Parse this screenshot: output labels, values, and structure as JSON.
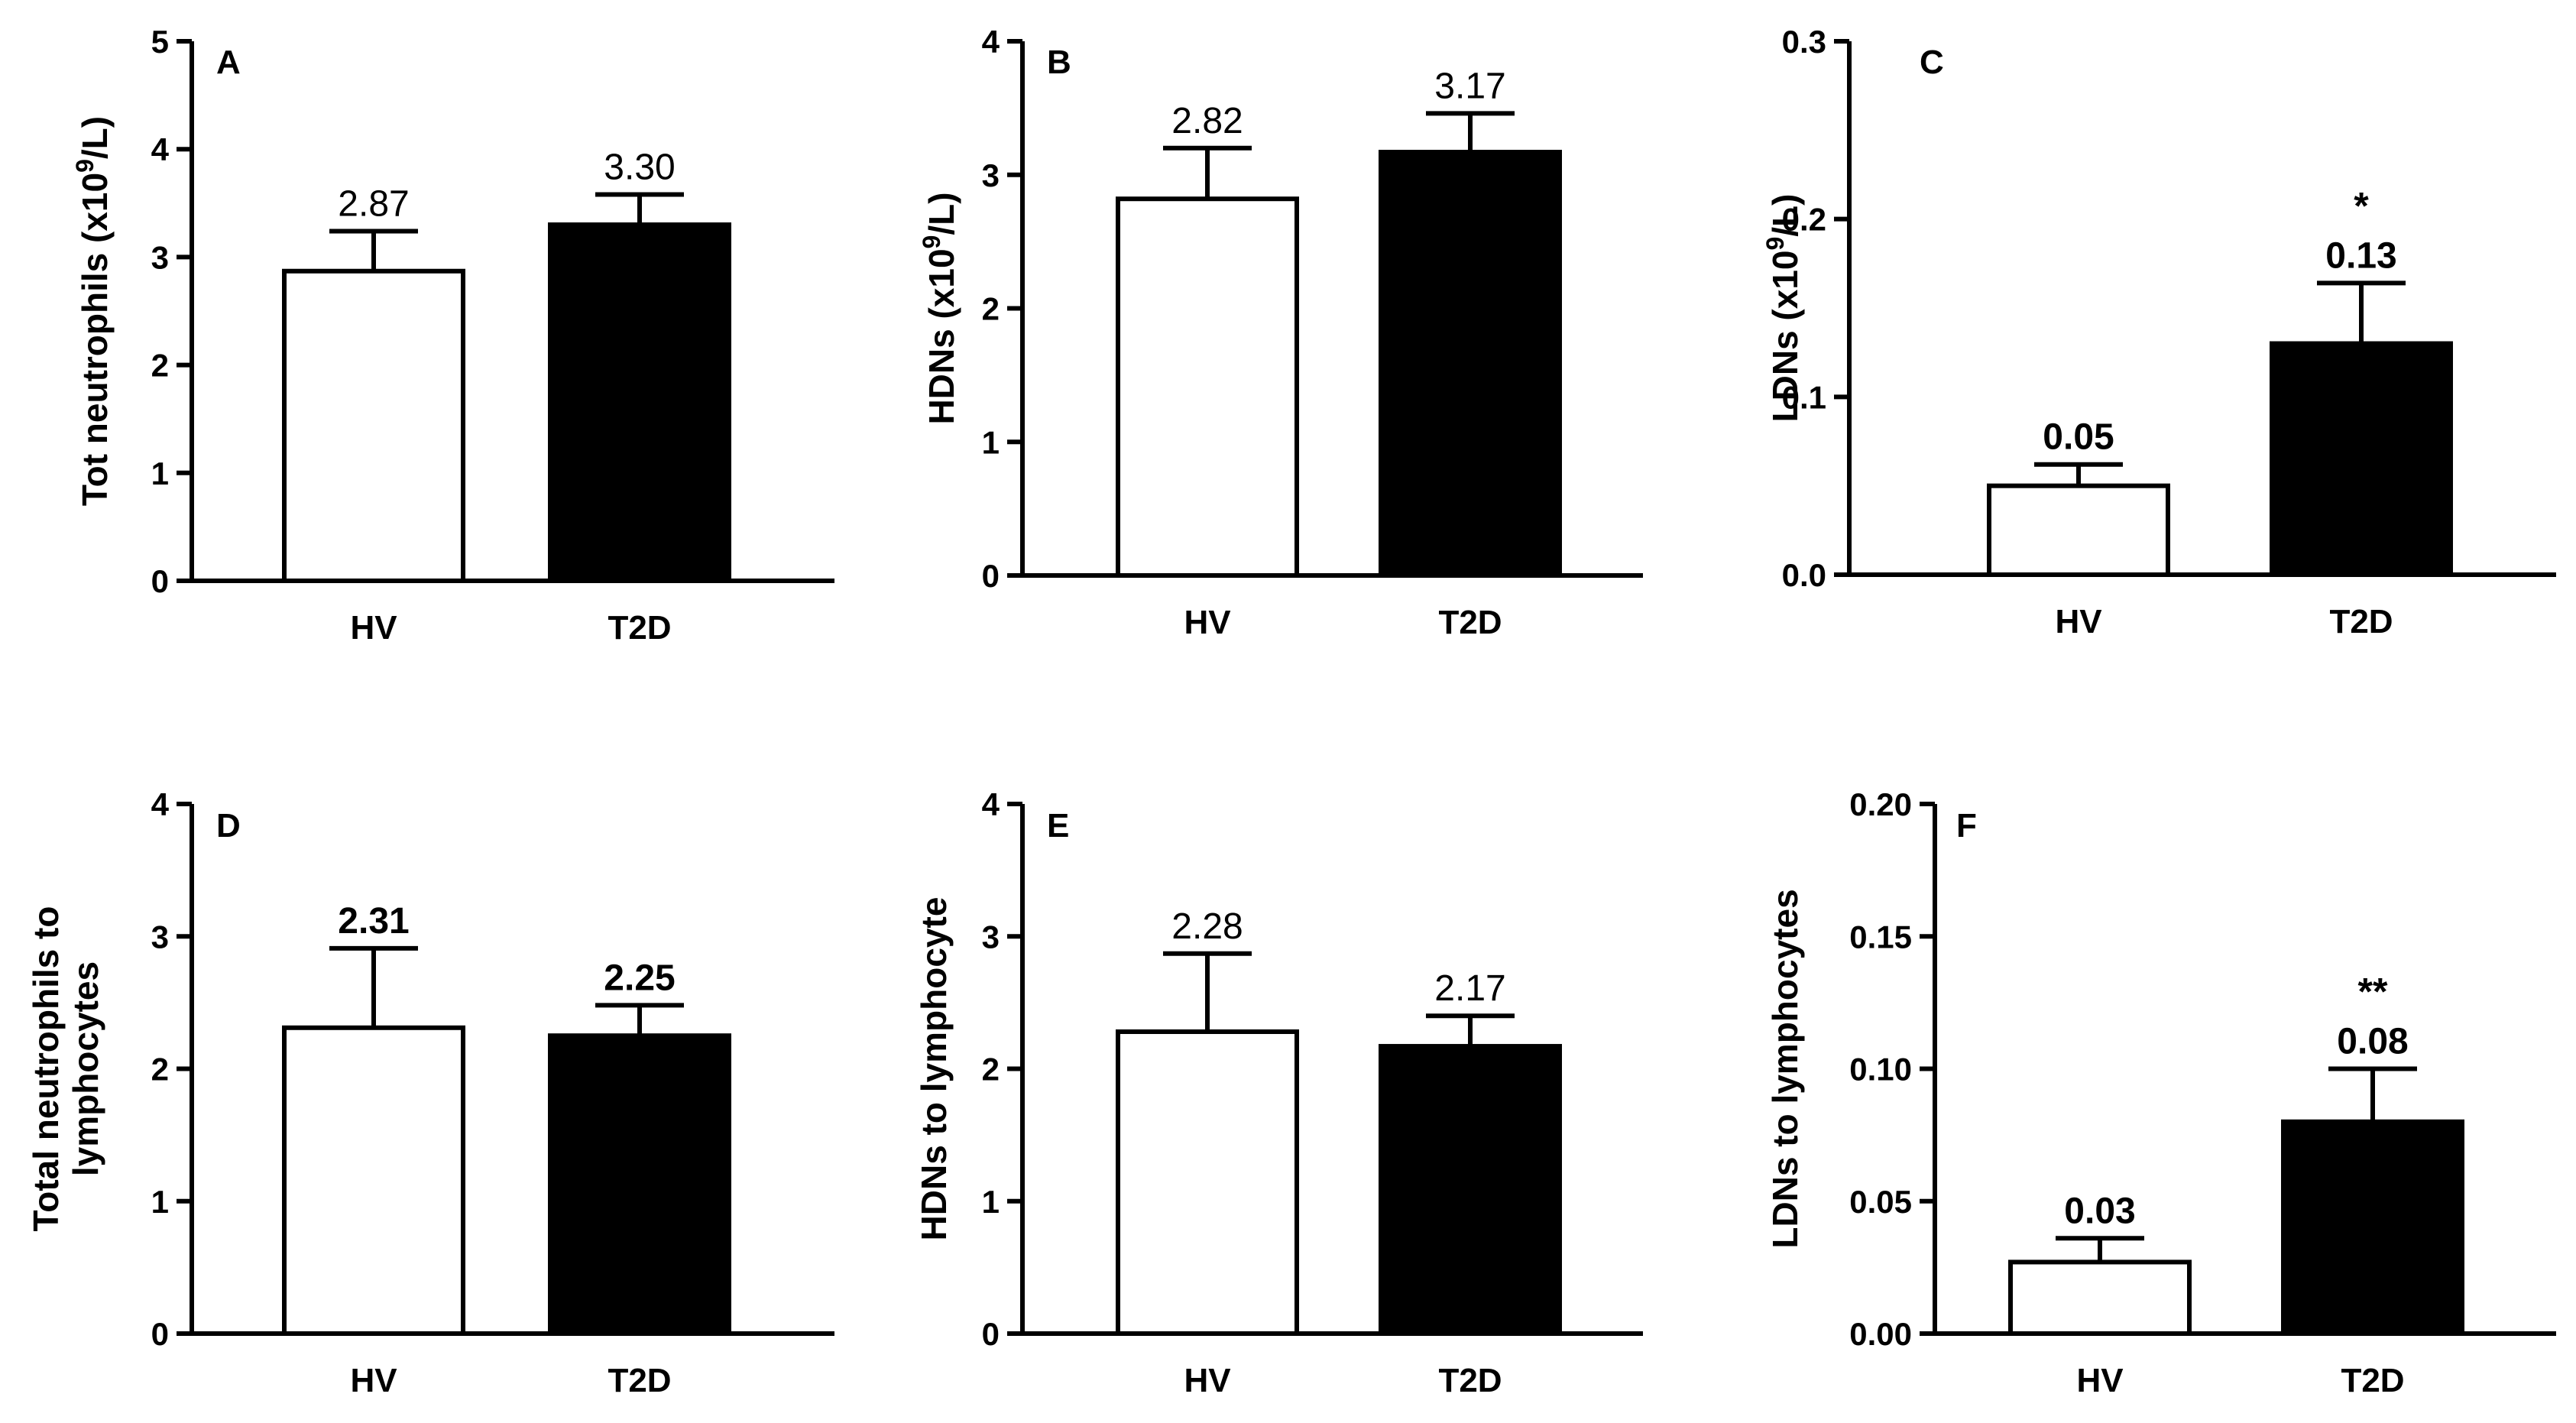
{
  "colors": {
    "axis": "#000000",
    "hv_fill": "#ffffff",
    "t2d_fill": "#000000",
    "bar_stroke": "#000000"
  },
  "chart_data": [
    {
      "type": "bar",
      "panel": "A",
      "ylabel_parts": [
        "Tot neutrophils (x10",
        "9",
        "/L)"
      ],
      "ylim": [
        0,
        5
      ],
      "yticks": [
        "0",
        "1",
        "2",
        "3",
        "4",
        "5"
      ],
      "categories": [
        "HV",
        "T2D"
      ],
      "values": [
        2.87,
        3.3
      ],
      "errors": [
        0.37,
        0.28
      ],
      "labels": [
        "2.87",
        "3.30"
      ],
      "sig": [
        "",
        ""
      ],
      "label_bold": false
    },
    {
      "type": "bar",
      "panel": "B",
      "ylabel_parts": [
        "HDNs (x10",
        "9",
        "/L)"
      ],
      "ylim": [
        0,
        4
      ],
      "yticks": [
        "0",
        "1",
        "2",
        "3",
        "4"
      ],
      "categories": [
        "HV",
        "T2D"
      ],
      "values": [
        2.82,
        3.17
      ],
      "errors": [
        0.38,
        0.29
      ],
      "labels": [
        "2.82",
        "3.17"
      ],
      "sig": [
        "",
        ""
      ],
      "label_bold": false
    },
    {
      "type": "bar",
      "panel": "C",
      "ylabel_parts": [
        "LDNs (x10",
        "9",
        "/L)"
      ],
      "ylim": [
        0,
        0.3
      ],
      "yticks": [
        "0.0",
        "0.1",
        "0.2",
        "0.3"
      ],
      "categories": [
        "HV",
        "T2D"
      ],
      "values": [
        0.05,
        0.13
      ],
      "errors": [
        0.012,
        0.034
      ],
      "labels": [
        "0.05",
        "0.13"
      ],
      "sig": [
        "",
        "*"
      ],
      "label_bold": true
    },
    {
      "type": "bar",
      "panel": "D",
      "ylabel_lines": [
        "Total neutrophils to",
        "lymphocytes"
      ],
      "ylim": [
        0,
        4
      ],
      "yticks": [
        "0",
        "1",
        "2",
        "3",
        "4"
      ],
      "categories": [
        "HV",
        "T2D"
      ],
      "values": [
        2.31,
        2.25
      ],
      "errors": [
        0.6,
        0.23
      ],
      "labels": [
        "2.31",
        "2.25"
      ],
      "sig": [
        "",
        ""
      ],
      "label_bold": true
    },
    {
      "type": "bar",
      "panel": "E",
      "ylabel_lines": [
        "HDNs to lymphocyte"
      ],
      "ylim": [
        0,
        4
      ],
      "yticks": [
        "0",
        "1",
        "2",
        "3",
        "4"
      ],
      "categories": [
        "HV",
        "T2D"
      ],
      "values": [
        2.28,
        2.17
      ],
      "errors": [
        0.59,
        0.23
      ],
      "labels": [
        "2.28",
        "2.17"
      ],
      "sig": [
        "",
        ""
      ],
      "label_bold": false
    },
    {
      "type": "bar",
      "panel": "F",
      "ylabel_lines": [
        "LDNs to lymphocytes"
      ],
      "ylim": [
        0,
        0.2
      ],
      "yticks": [
        "0.00",
        "0.05",
        "0.10",
        "0.15",
        "0.20"
      ],
      "categories": [
        "HV",
        "T2D"
      ],
      "values": [
        0.027,
        0.08
      ],
      "errors": [
        0.009,
        0.02
      ],
      "labels": [
        "0.03",
        "0.08"
      ],
      "sig": [
        "",
        "**"
      ],
      "label_bold": true
    }
  ]
}
